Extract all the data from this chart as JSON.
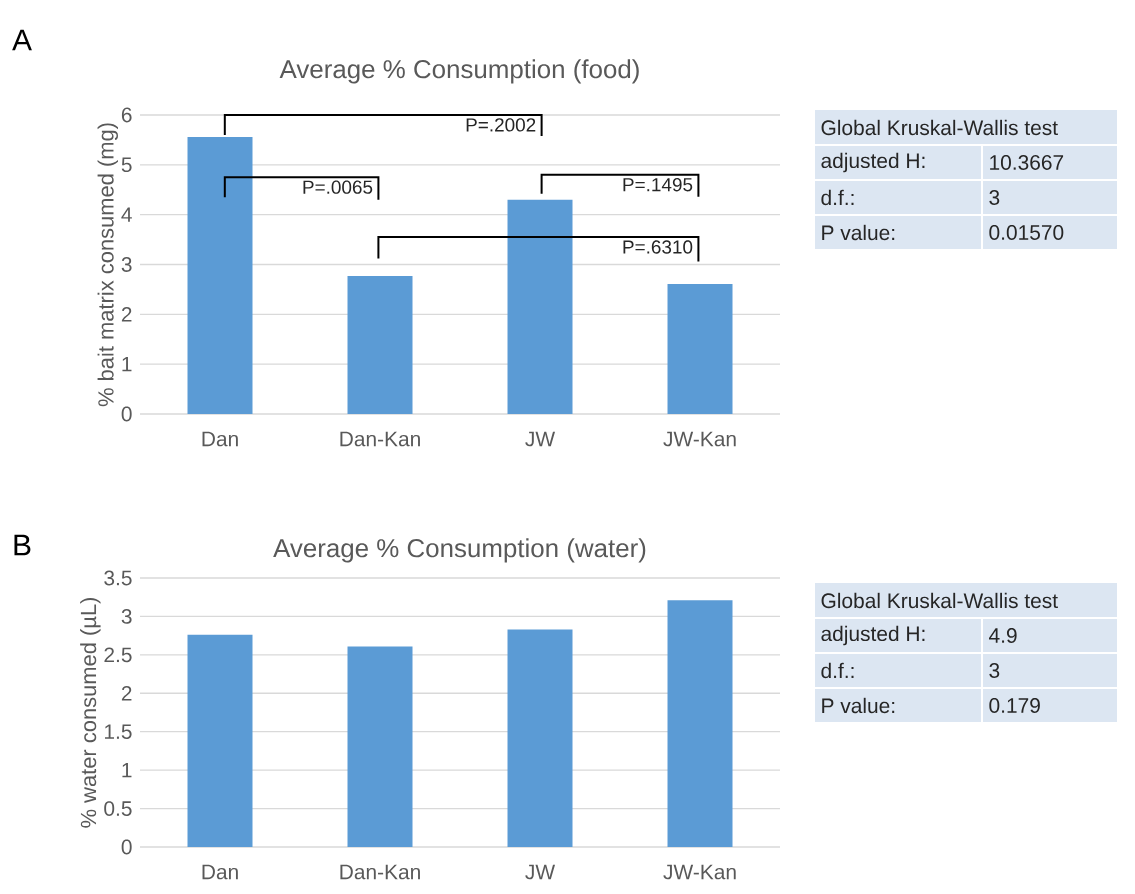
{
  "chart_data": [
    {
      "type": "bar",
      "title": "Average % Consumption  (food)",
      "ylabel": "% bait matrix consumed (mg)",
      "categories": [
        "Dan",
        "Dan-Kan",
        "JW",
        "JW-Kan"
      ],
      "values": [
        5.56,
        2.77,
        4.3,
        2.61
      ],
      "color": "#5b9bd5",
      "ylim": [
        0,
        6
      ],
      "yticks": [
        0,
        1,
        2,
        3,
        4,
        5,
        6
      ],
      "grid": "y",
      "annotations": [
        "A",
        "P=.2002",
        "P=.0065",
        "P=.1495",
        "P=.6310"
      ]
    },
    {
      "type": "other",
      "title": "Global Kruskal-Wallis test",
      "annotations": [
        "adjusted H:",
        "10.3667",
        "d.f.:",
        "3",
        "P value:",
        "0.01570"
      ]
    },
    {
      "type": "bar",
      "title": "Average % Consumption  (water)",
      "ylabel": "% water consumed (µL)",
      "categories": [
        "Dan",
        "Dan-Kan",
        "JW",
        "JW-Kan"
      ],
      "values": [
        2.76,
        2.61,
        2.83,
        3.21
      ],
      "color": "#5b9bd5",
      "ylim": [
        0,
        3.5
      ],
      "yticks": [
        0,
        0.5,
        1,
        1.5,
        2,
        2.5,
        3,
        3.5
      ],
      "grid": "y",
      "annotations": [
        "B"
      ]
    },
    {
      "type": "other",
      "title": "Global Kruskal-Wallis test",
      "annotations": [
        "adjusted H:",
        "4.9",
        "d.f.:",
        "3",
        "P value:",
        "0.179"
      ]
    }
  ]
}
